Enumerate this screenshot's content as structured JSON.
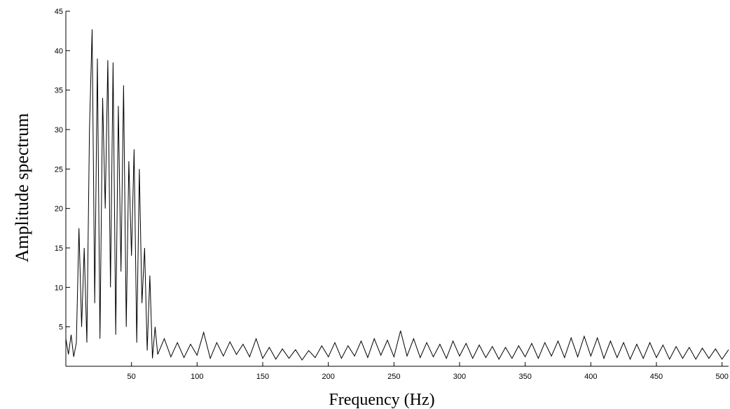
{
  "chart_data": {
    "type": "line",
    "title": "",
    "xlabel": "Frequency (Hz)",
    "ylabel": "Amplitude spectrum",
    "xlim": [
      0,
      505
    ],
    "ylim": [
      0,
      45
    ],
    "x_ticks": [
      50,
      100,
      150,
      200,
      250,
      300,
      350,
      400,
      450,
      500
    ],
    "y_ticks": [
      5,
      10,
      15,
      20,
      25,
      30,
      35,
      40,
      45
    ],
    "grid": false,
    "line_color": "#000000",
    "series": [
      {
        "x": [
          0,
          2,
          4,
          6,
          8,
          10,
          12,
          14,
          16,
          18,
          20,
          22,
          24,
          26,
          28,
          30,
          32,
          34,
          36,
          38,
          40,
          42,
          44,
          46,
          48,
          50,
          52,
          54,
          56,
          58,
          60,
          62,
          64,
          66,
          68,
          70,
          75,
          80,
          85,
          90,
          95,
          100,
          105,
          110,
          115,
          120,
          125,
          130,
          135,
          140,
          145,
          150,
          155,
          160,
          165,
          170,
          175,
          180,
          185,
          190,
          195,
          200,
          205,
          210,
          215,
          220,
          225,
          230,
          235,
          240,
          245,
          250,
          255,
          260,
          265,
          270,
          275,
          280,
          285,
          290,
          295,
          300,
          305,
          310,
          315,
          320,
          325,
          330,
          335,
          340,
          345,
          350,
          355,
          360,
          365,
          370,
          375,
          380,
          385,
          390,
          395,
          400,
          405,
          410,
          415,
          420,
          425,
          430,
          435,
          440,
          445,
          450,
          455,
          460,
          465,
          470,
          475,
          480,
          485,
          490,
          495,
          500,
          505
        ],
        "values": [
          3.5,
          1.5,
          4,
          1.2,
          3,
          17.5,
          5,
          15,
          3,
          30,
          42.7,
          8,
          39,
          3.5,
          34,
          20,
          38.8,
          10,
          38.5,
          4,
          33,
          12,
          35.6,
          5,
          26,
          14,
          27.5,
          3,
          25,
          8,
          15,
          2,
          11.5,
          1,
          5,
          1.5,
          3.5,
          1.2,
          3.0,
          1.1,
          2.8,
          1.4,
          4.3,
          1.0,
          3.0,
          1.3,
          3.1,
          1.5,
          2.8,
          1.2,
          3.5,
          1.0,
          2.4,
          0.9,
          2.2,
          1.0,
          2.1,
          0.8,
          2.0,
          1.1,
          2.6,
          1.2,
          3.0,
          1.0,
          2.6,
          1.3,
          3.2,
          1.1,
          3.5,
          1.4,
          3.3,
          1.2,
          4.5,
          1.3,
          3.5,
          1.1,
          3.0,
          1.2,
          2.8,
          1.0,
          3.2,
          1.3,
          2.9,
          1.0,
          2.7,
          1.1,
          2.5,
          0.9,
          2.4,
          1.0,
          2.6,
          1.2,
          2.9,
          1.0,
          3.0,
          1.3,
          3.2,
          1.1,
          3.6,
          1.2,
          3.8,
          1.3,
          3.6,
          1.0,
          3.2,
          1.1,
          3.0,
          0.9,
          2.8,
          1.0,
          3.0,
          1.1,
          2.7,
          0.9,
          2.5,
          1.0,
          2.4,
          0.9,
          2.3,
          1.0,
          2.2,
          0.9,
          2.1
        ]
      }
    ]
  }
}
